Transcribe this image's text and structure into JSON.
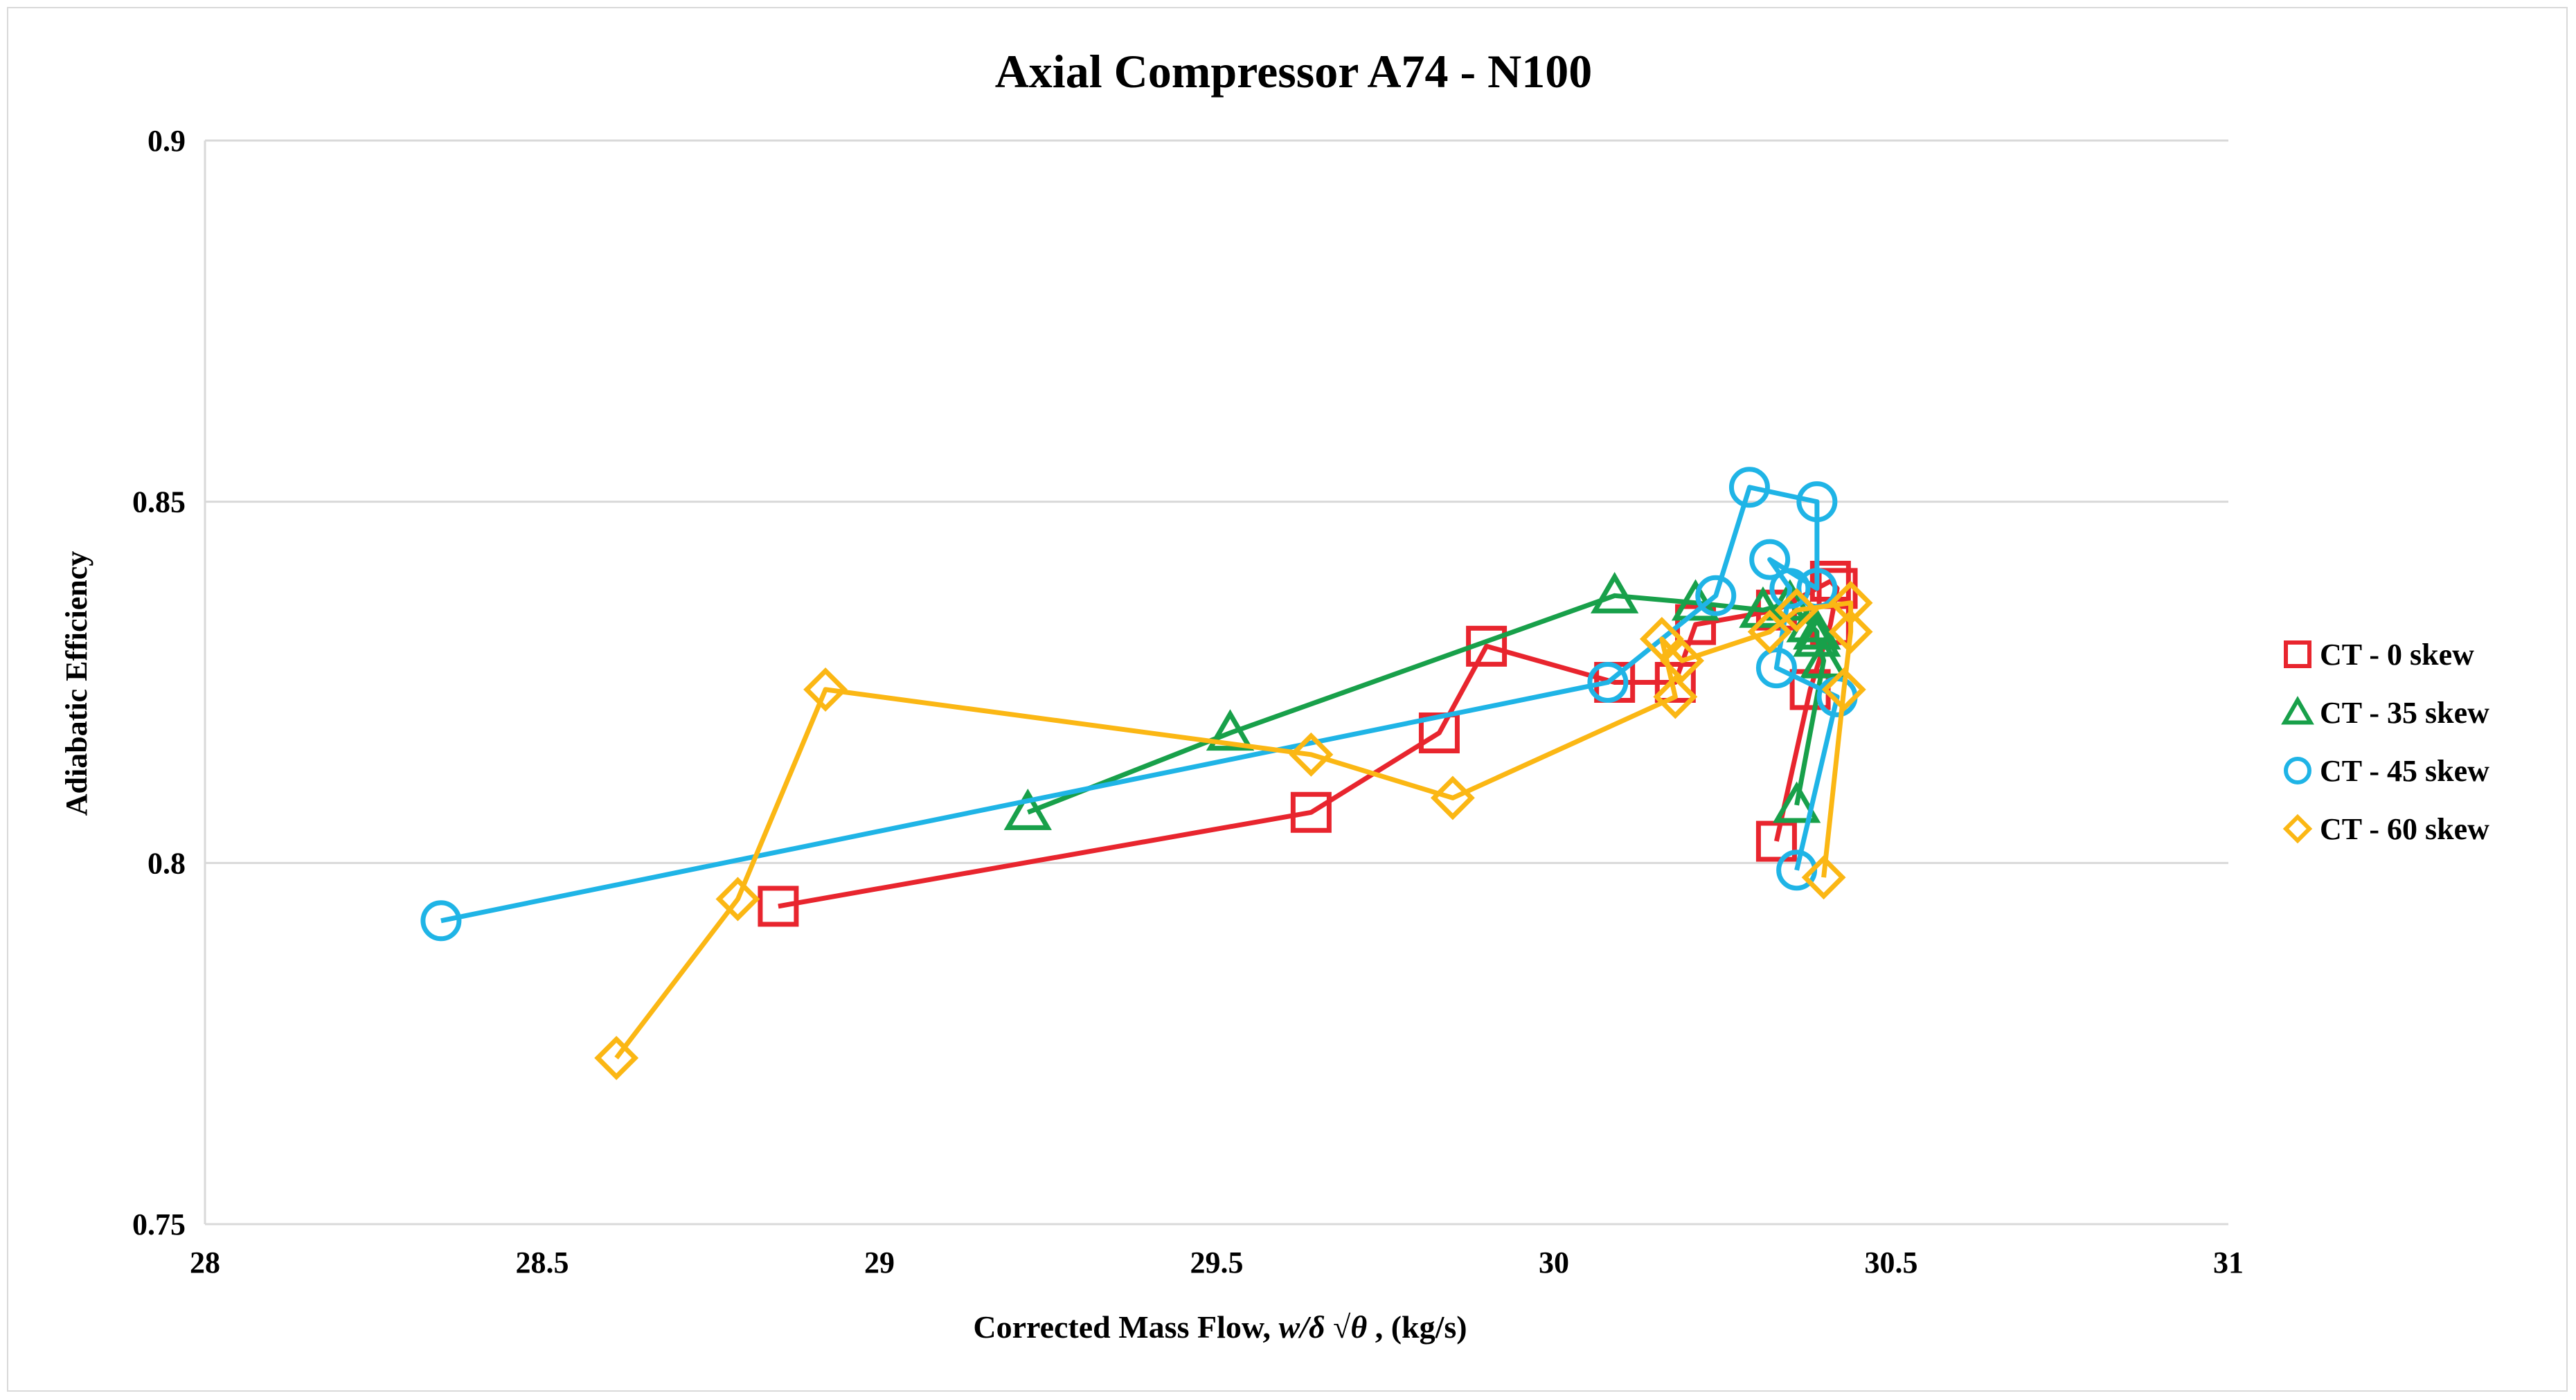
{
  "chart_data": {
    "type": "scatter",
    "title": "Axial Compressor A74 - N100",
    "xlabel_parts": [
      "Corrected Mass Flow, ",
      "w",
      "/",
      "δ",
      " √",
      "θ",
      " , (kg/s)"
    ],
    "ylabel": "Adiabatic Efficiency",
    "xlim": [
      28,
      31
    ],
    "ylim": [
      0.75,
      0.9
    ],
    "x_ticks": [
      "28",
      "28.5",
      "29",
      "29.5",
      "30",
      "30.5",
      "31"
    ],
    "y_ticks": [
      "0.75",
      "0.8",
      "0.85",
      "0.9"
    ],
    "grid": "horizontal",
    "legend_position": "right",
    "series": [
      {
        "name": "CT - 0 skew",
        "color": "#e8252e",
        "marker": "square",
        "points": [
          [
            28.85,
            0.794
          ],
          [
            29.64,
            0.807
          ],
          [
            29.83,
            0.818
          ],
          [
            29.9,
            0.83
          ],
          [
            30.09,
            0.825
          ],
          [
            30.18,
            0.825
          ],
          [
            30.21,
            0.833
          ],
          [
            30.33,
            0.835
          ],
          [
            30.41,
            0.839
          ],
          [
            30.42,
            0.838
          ],
          [
            30.41,
            0.833
          ],
          [
            30.38,
            0.824
          ],
          [
            30.33,
            0.803
          ]
        ]
      },
      {
        "name": "CT - 35 skew",
        "color": "#18a04a",
        "marker": "triangle",
        "points": [
          [
            29.22,
            0.807
          ],
          [
            29.52,
            0.818
          ],
          [
            30.09,
            0.837
          ],
          [
            30.21,
            0.836
          ],
          [
            30.31,
            0.835
          ],
          [
            30.35,
            0.836
          ],
          [
            30.38,
            0.833
          ],
          [
            30.39,
            0.832
          ],
          [
            30.39,
            0.831
          ],
          [
            30.4,
            0.828
          ],
          [
            30.36,
            0.808
          ]
        ]
      },
      {
        "name": "CT - 45 skew",
        "color": "#1fb4e6",
        "marker": "circle",
        "points": [
          [
            28.35,
            0.792
          ],
          [
            30.08,
            0.825
          ],
          [
            30.24,
            0.837
          ],
          [
            30.29,
            0.852
          ],
          [
            30.39,
            0.85
          ],
          [
            30.39,
            0.838
          ],
          [
            30.32,
            0.842
          ],
          [
            30.35,
            0.838
          ],
          [
            30.33,
            0.827
          ],
          [
            30.42,
            0.823
          ],
          [
            30.36,
            0.799
          ]
        ]
      },
      {
        "name": "CT - 60 skew",
        "color": "#fbb714",
        "marker": "diamond",
        "points": [
          [
            28.61,
            0.773
          ],
          [
            28.79,
            0.795
          ],
          [
            28.92,
            0.824
          ],
          [
            29.64,
            0.815
          ],
          [
            29.85,
            0.809
          ],
          [
            30.18,
            0.823
          ],
          [
            30.16,
            0.831
          ],
          [
            30.19,
            0.828
          ],
          [
            30.32,
            0.832
          ],
          [
            30.36,
            0.835
          ],
          [
            30.44,
            0.836
          ],
          [
            30.44,
            0.832
          ],
          [
            30.43,
            0.824
          ],
          [
            30.4,
            0.798
          ]
        ]
      }
    ]
  }
}
